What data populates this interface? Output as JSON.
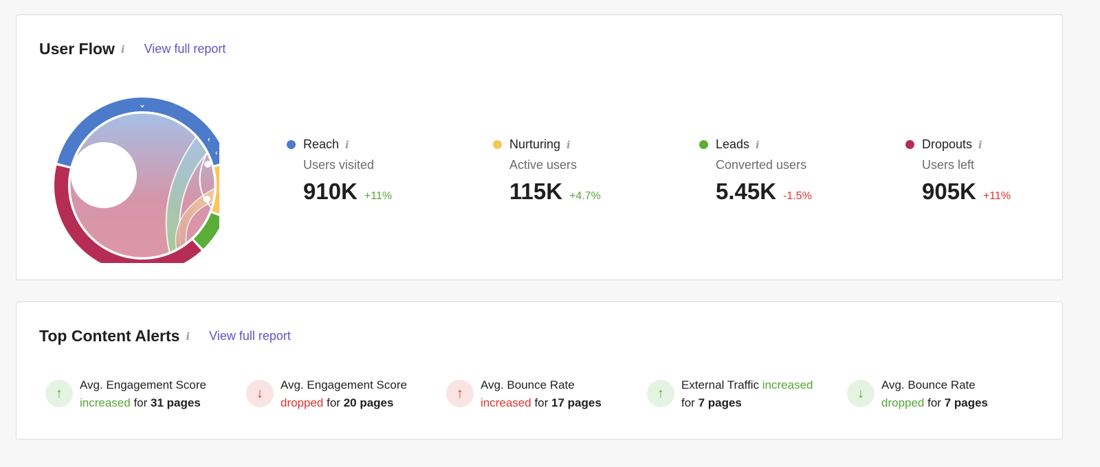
{
  "user_flow": {
    "title": "User Flow",
    "info": "i",
    "link": "View full report",
    "metrics": [
      {
        "name": "Reach",
        "sub": "Users visited",
        "value": "910K",
        "change": "+11%",
        "trend": "up",
        "color": "#4d7bcb"
      },
      {
        "name": "Nurturing",
        "sub": "Active users",
        "value": "115K",
        "change": "+4.7%",
        "trend": "up",
        "color": "#f6c758"
      },
      {
        "name": "Leads",
        "sub": "Converted users",
        "value": "5.45K",
        "change": "-1.5%",
        "trend": "down",
        "color": "#5aae38"
      },
      {
        "name": "Dropouts",
        "sub": "Users left",
        "value": "905K",
        "change": "+11%",
        "trend": "down",
        "color": "#b52d55"
      }
    ]
  },
  "alerts": {
    "title": "Top Content Alerts",
    "info": "i",
    "link": "View full report",
    "items": [
      {
        "icon": "arrow-up-icon",
        "tone": "g",
        "line1": "Avg. Engagement Score",
        "word": "increased",
        "wordtone": "up",
        "mid": " for ",
        "count": "31 pages"
      },
      {
        "icon": "arrow-down-icon",
        "tone": "r",
        "line1": "Avg. Engagement Score",
        "word": "dropped",
        "wordtone": "down",
        "mid": " for ",
        "count": "20 pages"
      },
      {
        "icon": "arrow-up-icon",
        "tone": "r",
        "line1": "Avg. Bounce Rate",
        "word": "increased",
        "wordtone": "down",
        "mid": " for ",
        "count": "17 pages"
      },
      {
        "icon": "arrow-up-icon",
        "tone": "g",
        "line1": "External Traffic ",
        "word": "increased",
        "wordtone": "up",
        "mid": "for ",
        "count": "7 pages",
        "inline": true
      },
      {
        "icon": "arrow-down-icon",
        "tone": "g",
        "line1": "Avg. Bounce Rate",
        "word": "dropped",
        "wordtone": "up",
        "mid": " for ",
        "count": "7 pages"
      }
    ]
  }
}
